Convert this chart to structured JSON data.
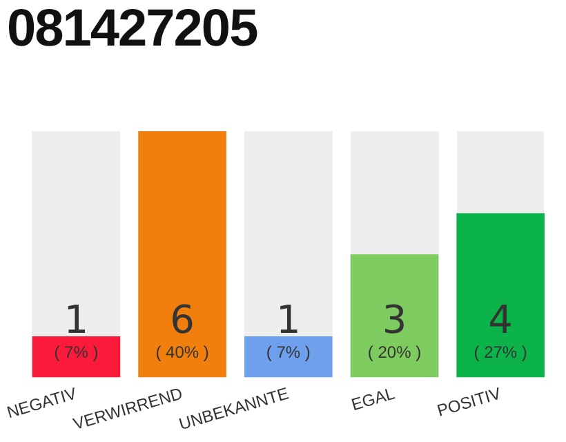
{
  "chart_data": {
    "type": "bar",
    "title": "081427205",
    "categories": [
      "NEGATIV",
      "VERWIRREND",
      "UNBEKANNTE",
      "EGAL",
      "POSITIV"
    ],
    "values": [
      1,
      6,
      1,
      3,
      4
    ],
    "colors": [
      "#fc1a3a",
      "#f07f0e",
      "#6fa0ee",
      "#7ecb5f",
      "#0cb34a"
    ],
    "value_labels": [
      "1\n( 7% )",
      "6\n( 40% )",
      "1\n( 7% )",
      "3\n( 20% )",
      "4\n( 27% )"
    ],
    "grid": false,
    "legend": false
  }
}
